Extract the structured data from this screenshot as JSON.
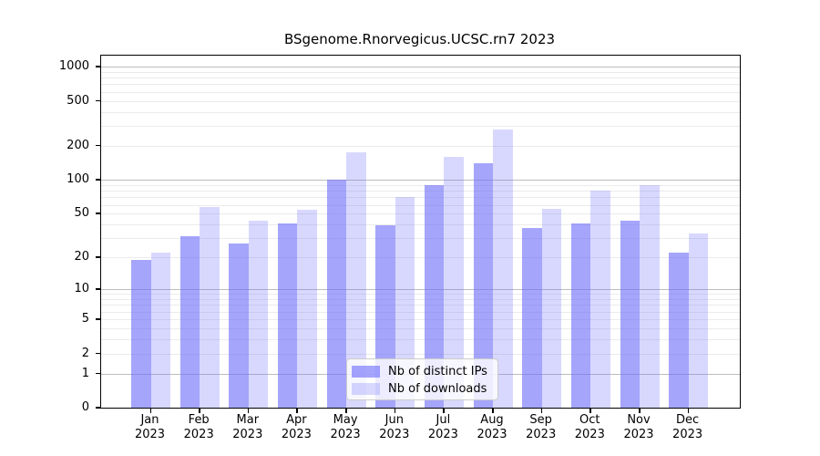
{
  "chart_data": {
    "type": "bar",
    "title": "BSgenome.Rnorvegicus.UCSC.rn7 2023",
    "categories": [
      "Jan",
      "Feb",
      "Mar",
      "Apr",
      "May",
      "Jun",
      "Jul",
      "Aug",
      "Sep",
      "Oct",
      "Nov",
      "Dec"
    ],
    "year_label": "2023",
    "series": [
      {
        "name": "Nb of distinct IPs",
        "color": "rgba(110,110,250,0.62)",
        "values": [
          19,
          31,
          27,
          41,
          100,
          39,
          89,
          140,
          37,
          41,
          43,
          22
        ]
      },
      {
        "name": "Nb of downloads",
        "color": "rgba(110,110,250,0.27)",
        "values": [
          22,
          57,
          43,
          54,
          175,
          70,
          160,
          280,
          55,
          80,
          90,
          33
        ]
      }
    ],
    "xlabel": "",
    "ylabel": "",
    "y_axis": {
      "scale": "log10(1+x)",
      "tick_labels": [
        "1000",
        "500",
        "200",
        "100",
        "50",
        "20",
        "10",
        "5",
        "2",
        "1",
        "0"
      ],
      "tick_values": [
        1000,
        500,
        200,
        100,
        50,
        20,
        10,
        5,
        2,
        1,
        0
      ],
      "major_gridline_values": [
        1,
        10,
        100,
        1000
      ],
      "ylim": [
        0,
        1100
      ]
    },
    "grid": true,
    "legend_position": "inside-bottom-center",
    "colors": {
      "bar_distinct_ips_rendered": "#a8a8fa",
      "bar_downloads_rendered": "#dadafa",
      "major_grid": "#bdbdbd",
      "minor_grid": "#ebebeb",
      "frame": "#000000"
    }
  }
}
